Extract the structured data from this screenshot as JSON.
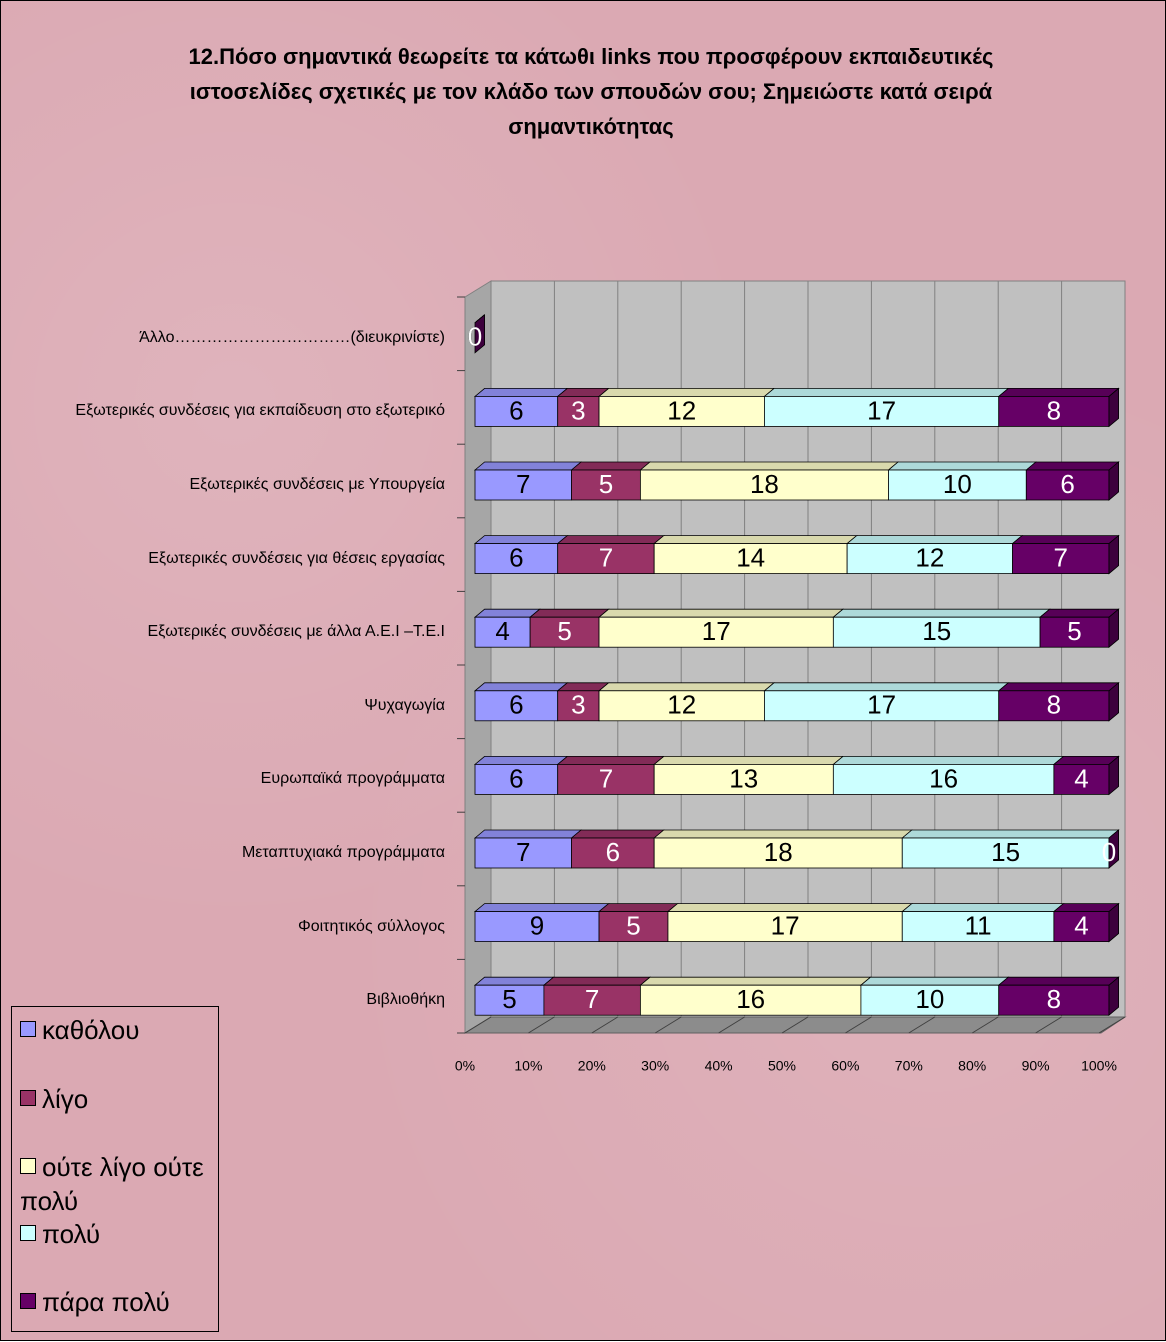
{
  "chart_data": {
    "type": "bar",
    "orientation": "horizontal",
    "stacked": "percent",
    "title": "12.Πόσο σημαντικά θεωρείτε τα κάτωθι links που προσφέρουν εκπαιδευτικές ιστοσελίδες σχετικές με τον κλάδο των σπουδών σου; Σημειώστε κατά σειρά σημαντικότητας",
    "categories": [
      "Άλλο……………………………(διευκρινίστε)",
      "Εξωτερικές συνδέσεις για εκπαίδευση στο εξωτερικό",
      "Εξωτερικές συνδέσεις με Υπουργεία",
      "Εξωτερικές συνδέσεις για θέσεις εργασίας",
      "Εξωτερικές συνδέσεις με άλλα Α.Ε.Ι –Τ.Ε.Ι",
      "Ψυχαγωγία",
      "Ευρωπαϊκά προγράμματα",
      "Μεταπτυχιακά προγράμματα",
      "Φοιτητικός σύλλογος",
      "Βιβλιοθήκη"
    ],
    "series": [
      {
        "name": "καθόλου",
        "color": "#9999ff",
        "values": [
          0,
          6,
          7,
          6,
          4,
          6,
          6,
          7,
          9,
          5
        ]
      },
      {
        "name": "λίγο",
        "color": "#993366",
        "values": [
          0,
          3,
          5,
          7,
          5,
          3,
          7,
          6,
          5,
          7
        ]
      },
      {
        "name": "ούτε λίγο ούτε πολύ",
        "color": "#ffffcc",
        "values": [
          0,
          12,
          18,
          14,
          17,
          12,
          13,
          18,
          17,
          16
        ]
      },
      {
        "name": "πολύ",
        "color": "#ccffff",
        "values": [
          0,
          17,
          10,
          12,
          15,
          17,
          16,
          15,
          11,
          10
        ]
      },
      {
        "name": "πάρα πολύ",
        "color": "#660066",
        "values": [
          0,
          8,
          6,
          7,
          5,
          8,
          4,
          0,
          4,
          8
        ]
      }
    ],
    "xlim": [
      0,
      100
    ],
    "xticks": [
      {
        "value": 0,
        "label": "0%"
      },
      {
        "value": 10,
        "label": "10%"
      },
      {
        "value": 20,
        "label": "20%"
      },
      {
        "value": 30,
        "label": "30%"
      },
      {
        "value": 40,
        "label": "40%"
      },
      {
        "value": 50,
        "label": "50%"
      },
      {
        "value": 60,
        "label": "60%"
      },
      {
        "value": 70,
        "label": "70%"
      },
      {
        "value": 80,
        "label": "80%"
      },
      {
        "value": 90,
        "label": "90%"
      },
      {
        "value": 100,
        "label": "100%"
      }
    ],
    "grid": true,
    "legend": "bottom-left"
  }
}
